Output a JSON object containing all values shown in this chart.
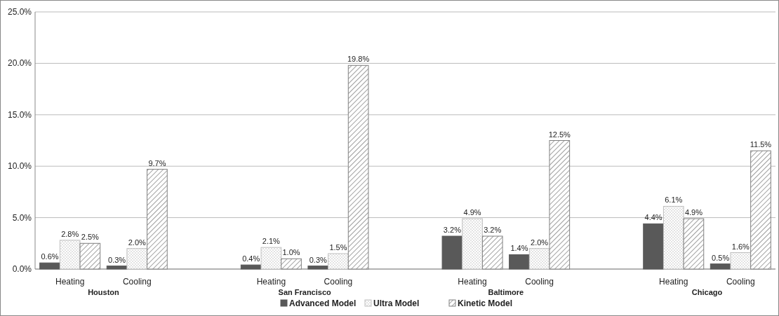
{
  "chart_data": {
    "type": "bar",
    "categories": [
      "Heating",
      "Cooling",
      null,
      "Heating",
      "Cooling",
      null,
      "Heating",
      "Cooling",
      null,
      "Heating",
      "Cooling"
    ],
    "series": [
      {
        "name": "Advanced Model",
        "color": "#595959",
        "values": [
          0.6,
          0.3,
          null,
          0.4,
          0.3,
          null,
          3.2,
          1.4,
          null,
          4.4,
          0.5
        ],
        "value_labels": [
          "0.6%",
          "0.3%",
          null,
          "0.4%",
          "0.3%",
          null,
          "3.2%",
          "1.4%",
          null,
          "4.4%",
          "0.5%"
        ]
      },
      {
        "name": "Ultra Model",
        "color": "#bfbfbf",
        "values": [
          2.8,
          2.0,
          null,
          2.1,
          1.5,
          null,
          4.9,
          2.0,
          null,
          6.1,
          1.6
        ],
        "value_labels": [
          "2.8%",
          "2.0%",
          null,
          "2.1%",
          "1.5%",
          null,
          "4.9%",
          "2.0%",
          null,
          "6.1%",
          "1.6%"
        ]
      },
      {
        "name": "Kinetic Model",
        "color": "#808080",
        "values": [
          2.5,
          9.7,
          null,
          1.0,
          19.8,
          null,
          3.2,
          12.5,
          null,
          4.9,
          11.5
        ],
        "value_labels": [
          "2.5%",
          "9.7%",
          null,
          "1.0%",
          "19.8%",
          null,
          "3.2%",
          "12.5%",
          null,
          "4.9%",
          "11.5%"
        ]
      }
    ],
    "annotations": [
      "Houston",
      "San Francisco",
      "Baltimore",
      "Chicago"
    ],
    "ylim": [
      0,
      25
    ],
    "yticks": [
      {
        "value": 0,
        "label": "0.0%"
      },
      {
        "value": 5,
        "label": "5.0%"
      },
      {
        "value": 10,
        "label": "10.0%"
      },
      {
        "value": 15,
        "label": "15.0%"
      },
      {
        "value": 20,
        "label": "20.0%"
      },
      {
        "value": 25,
        "label": "25.0%"
      }
    ],
    "grid": "y",
    "legend": "bottom"
  }
}
